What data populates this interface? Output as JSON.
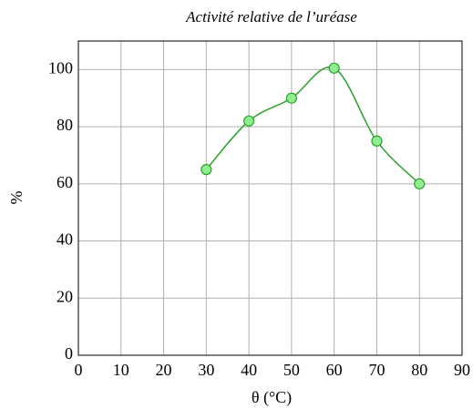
{
  "chart_data": {
    "type": "line",
    "title": "Activité relative de l’uréase",
    "x_label": "θ (°C)",
    "y_label": "%",
    "x": [
      30,
      40,
      50,
      60,
      70,
      80
    ],
    "series": [
      {
        "name": "Activité relative",
        "color": "#2ca02c",
        "marker_color": "#90ee90",
        "values": [
          65,
          82,
          90,
          100.5,
          75,
          60
        ]
      }
    ],
    "xlim": [
      0,
      90
    ],
    "xticks": [
      0,
      10,
      20,
      30,
      40,
      50,
      60,
      70,
      80,
      90
    ],
    "ylim": [
      0,
      110
    ],
    "yticks": [
      0,
      20,
      40,
      60,
      80,
      100
    ],
    "grid": true,
    "smooth": true
  }
}
